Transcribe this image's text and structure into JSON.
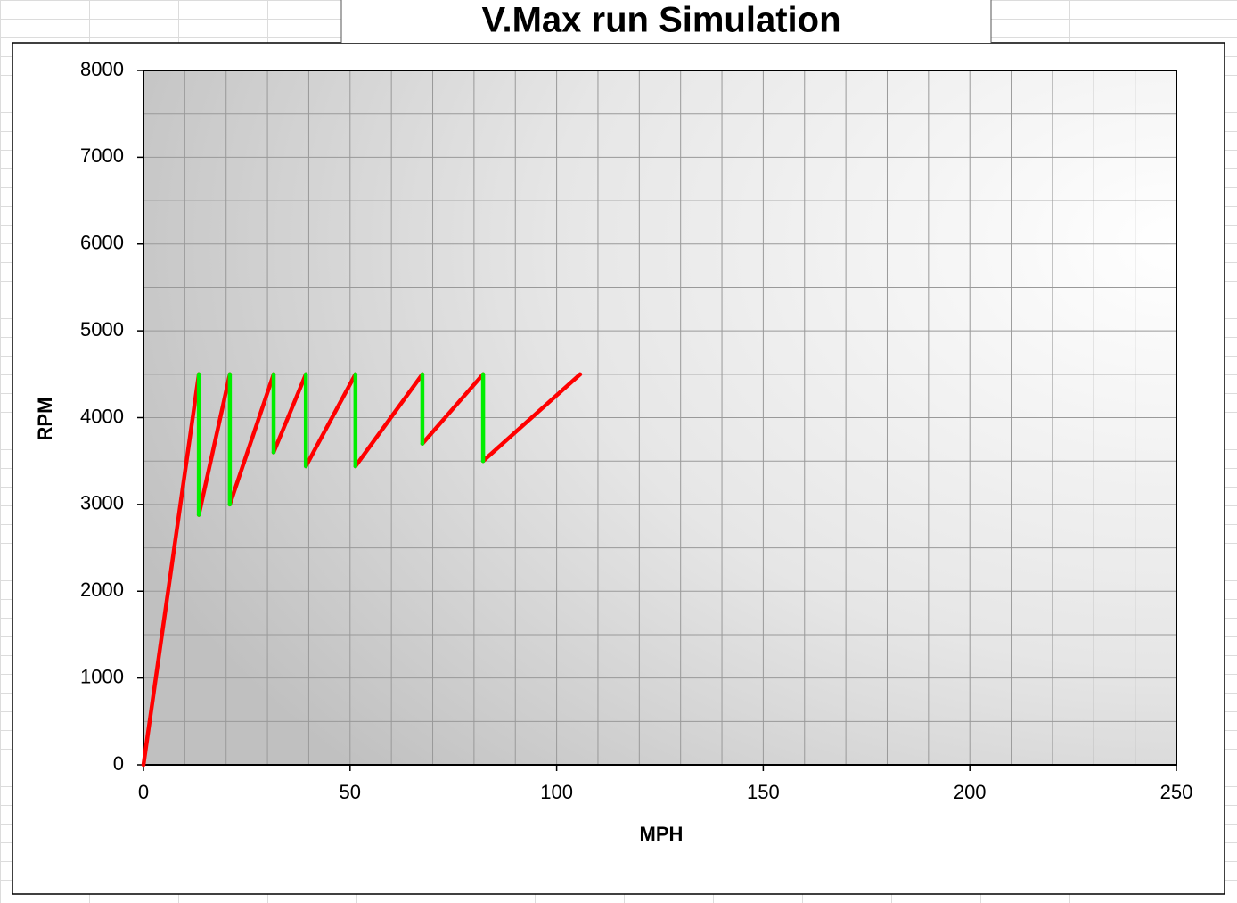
{
  "chart_data": {
    "type": "line",
    "title": "V.Max run Simulation",
    "x_label": "MPH",
    "y_label": "RPM",
    "xlim": [
      0,
      250
    ],
    "xticks": [
      0,
      50,
      100,
      150,
      200,
      250
    ],
    "ylim": [
      0,
      8000
    ],
    "yticks": [
      0,
      1000,
      2000,
      3000,
      4000,
      5000,
      6000,
      7000,
      8000
    ],
    "grid": true,
    "xgrid": [
      0,
      10,
      20,
      30,
      40,
      50,
      60,
      70,
      80,
      90,
      100,
      110,
      120,
      130,
      140,
      150,
      160,
      170,
      180,
      190,
      200,
      210,
      220,
      230,
      240,
      250
    ],
    "ygrid": [
      0,
      500,
      1000,
      1500,
      2000,
      2500,
      3000,
      3500,
      4000,
      4500,
      5000,
      5500,
      6000,
      6500,
      7000,
      7500,
      8000
    ],
    "series": [
      {
        "color": "#ff0000",
        "x": [
          0,
          13.4,
          13.4,
          13.4,
          20.9,
          20.9,
          20.9,
          31.5,
          31.5,
          31.5,
          39.3,
          39.3,
          39.3,
          51.3,
          51.3,
          51.3,
          67.5,
          67.5,
          67.5,
          82.2,
          82.2,
          82.2,
          105.7
        ],
        "values": [
          0,
          4500,
          null,
          2880,
          4500,
          null,
          3000,
          4500,
          null,
          3600,
          4500,
          null,
          3440,
          4500,
          null,
          3440,
          4500,
          null,
          3700,
          4500,
          null,
          3500,
          4500
        ]
      },
      {
        "color": "#00ee00",
        "x": [
          13.4,
          13.4,
          13.4,
          20.9,
          20.9,
          20.9,
          31.5,
          31.5,
          31.5,
          39.3,
          39.3,
          39.3,
          51.3,
          51.3,
          51.3,
          67.5,
          67.5,
          67.5,
          82.2,
          82.2
        ],
        "values": [
          4500,
          2880,
          null,
          4500,
          3000,
          null,
          4500,
          3600,
          null,
          4500,
          3440,
          null,
          4500,
          3440,
          null,
          4500,
          3700,
          null,
          4500,
          3500
        ]
      }
    ]
  }
}
